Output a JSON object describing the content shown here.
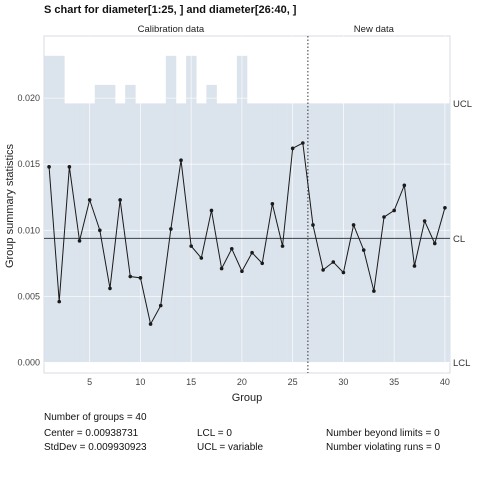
{
  "chart_data": {
    "type": "line",
    "title": "S chart for diameter[1:25, ] and diameter[26:40, ]",
    "xlabel": "Group",
    "ylabel": "Group summary statistics",
    "xlim": [
      0.5,
      40.5
    ],
    "ylim": [
      -0.0008,
      0.0247
    ],
    "x_ticks": [
      5,
      10,
      15,
      20,
      25,
      30,
      35,
      40
    ],
    "y_ticks": [
      0.0,
      0.005,
      0.01,
      0.015,
      0.02
    ],
    "y_tick_labels": [
      "0.000",
      "0.005",
      "0.010",
      "0.015",
      "0.020"
    ],
    "phases": [
      {
        "label": "Calibration data",
        "from": 1,
        "to": 25
      },
      {
        "label": "New data",
        "from": 26,
        "to": 40
      }
    ],
    "split_at": 26.5,
    "center": 0.00938731,
    "lcl": 0,
    "ucl": [
      0.0232,
      0.0232,
      0.0196,
      0.0196,
      0.0196,
      0.021,
      0.021,
      0.0196,
      0.021,
      0.0196,
      0.0196,
      0.0196,
      0.0232,
      0.0196,
      0.0232,
      0.0196,
      0.021,
      0.0196,
      0.0196,
      0.0232,
      0.0196,
      0.0196,
      0.0196,
      0.0196,
      0.0196,
      0.0196,
      0.0196,
      0.0196,
      0.0196,
      0.0196,
      0.0196,
      0.0196,
      0.0196,
      0.0196,
      0.0196,
      0.0196,
      0.0196,
      0.0196,
      0.0196,
      0.0196
    ],
    "line_labels": {
      "ucl": "UCL",
      "cl": "CL",
      "lcl": "LCL"
    },
    "series": [
      {
        "x": [
          1,
          2,
          3,
          4,
          5,
          6,
          7,
          8,
          9,
          10,
          11,
          12,
          13,
          14,
          15,
          16,
          17,
          18,
          19,
          20,
          21,
          22,
          23,
          24,
          25,
          26,
          27,
          28,
          29,
          30,
          31,
          32,
          33,
          34,
          35,
          36,
          37,
          38,
          39,
          40
        ],
        "values": [
          0.0148,
          0.0046,
          0.0148,
          0.0092,
          0.0123,
          0.01,
          0.0056,
          0.0123,
          0.0065,
          0.0064,
          0.0029,
          0.0043,
          0.0101,
          0.0153,
          0.0088,
          0.0079,
          0.0115,
          0.0071,
          0.0086,
          0.0069,
          0.0083,
          0.0075,
          0.012,
          0.0088,
          0.0162,
          0.0166,
          0.0104,
          0.007,
          0.0076,
          0.0068,
          0.0104,
          0.0085,
          0.0054,
          0.011,
          0.0115,
          0.0134,
          0.0073,
          0.0107,
          0.009,
          0.0117
        ]
      }
    ],
    "colors": {
      "limits_band": "#dbe3ec",
      "line": "#1a1a1a",
      "center_line": "#3a3f47",
      "grid": "#ffffff",
      "panel_border": "#d0d4d8"
    }
  },
  "summary": {
    "groups": "Number of groups = 40",
    "center": "Center = 0.00938731",
    "stddev": "StdDev = 0.009930923",
    "lcl": "LCL = 0",
    "ucl": "UCL = variable",
    "beyond": "Number beyond limits = 0",
    "violating": "Number violating runs = 0"
  }
}
